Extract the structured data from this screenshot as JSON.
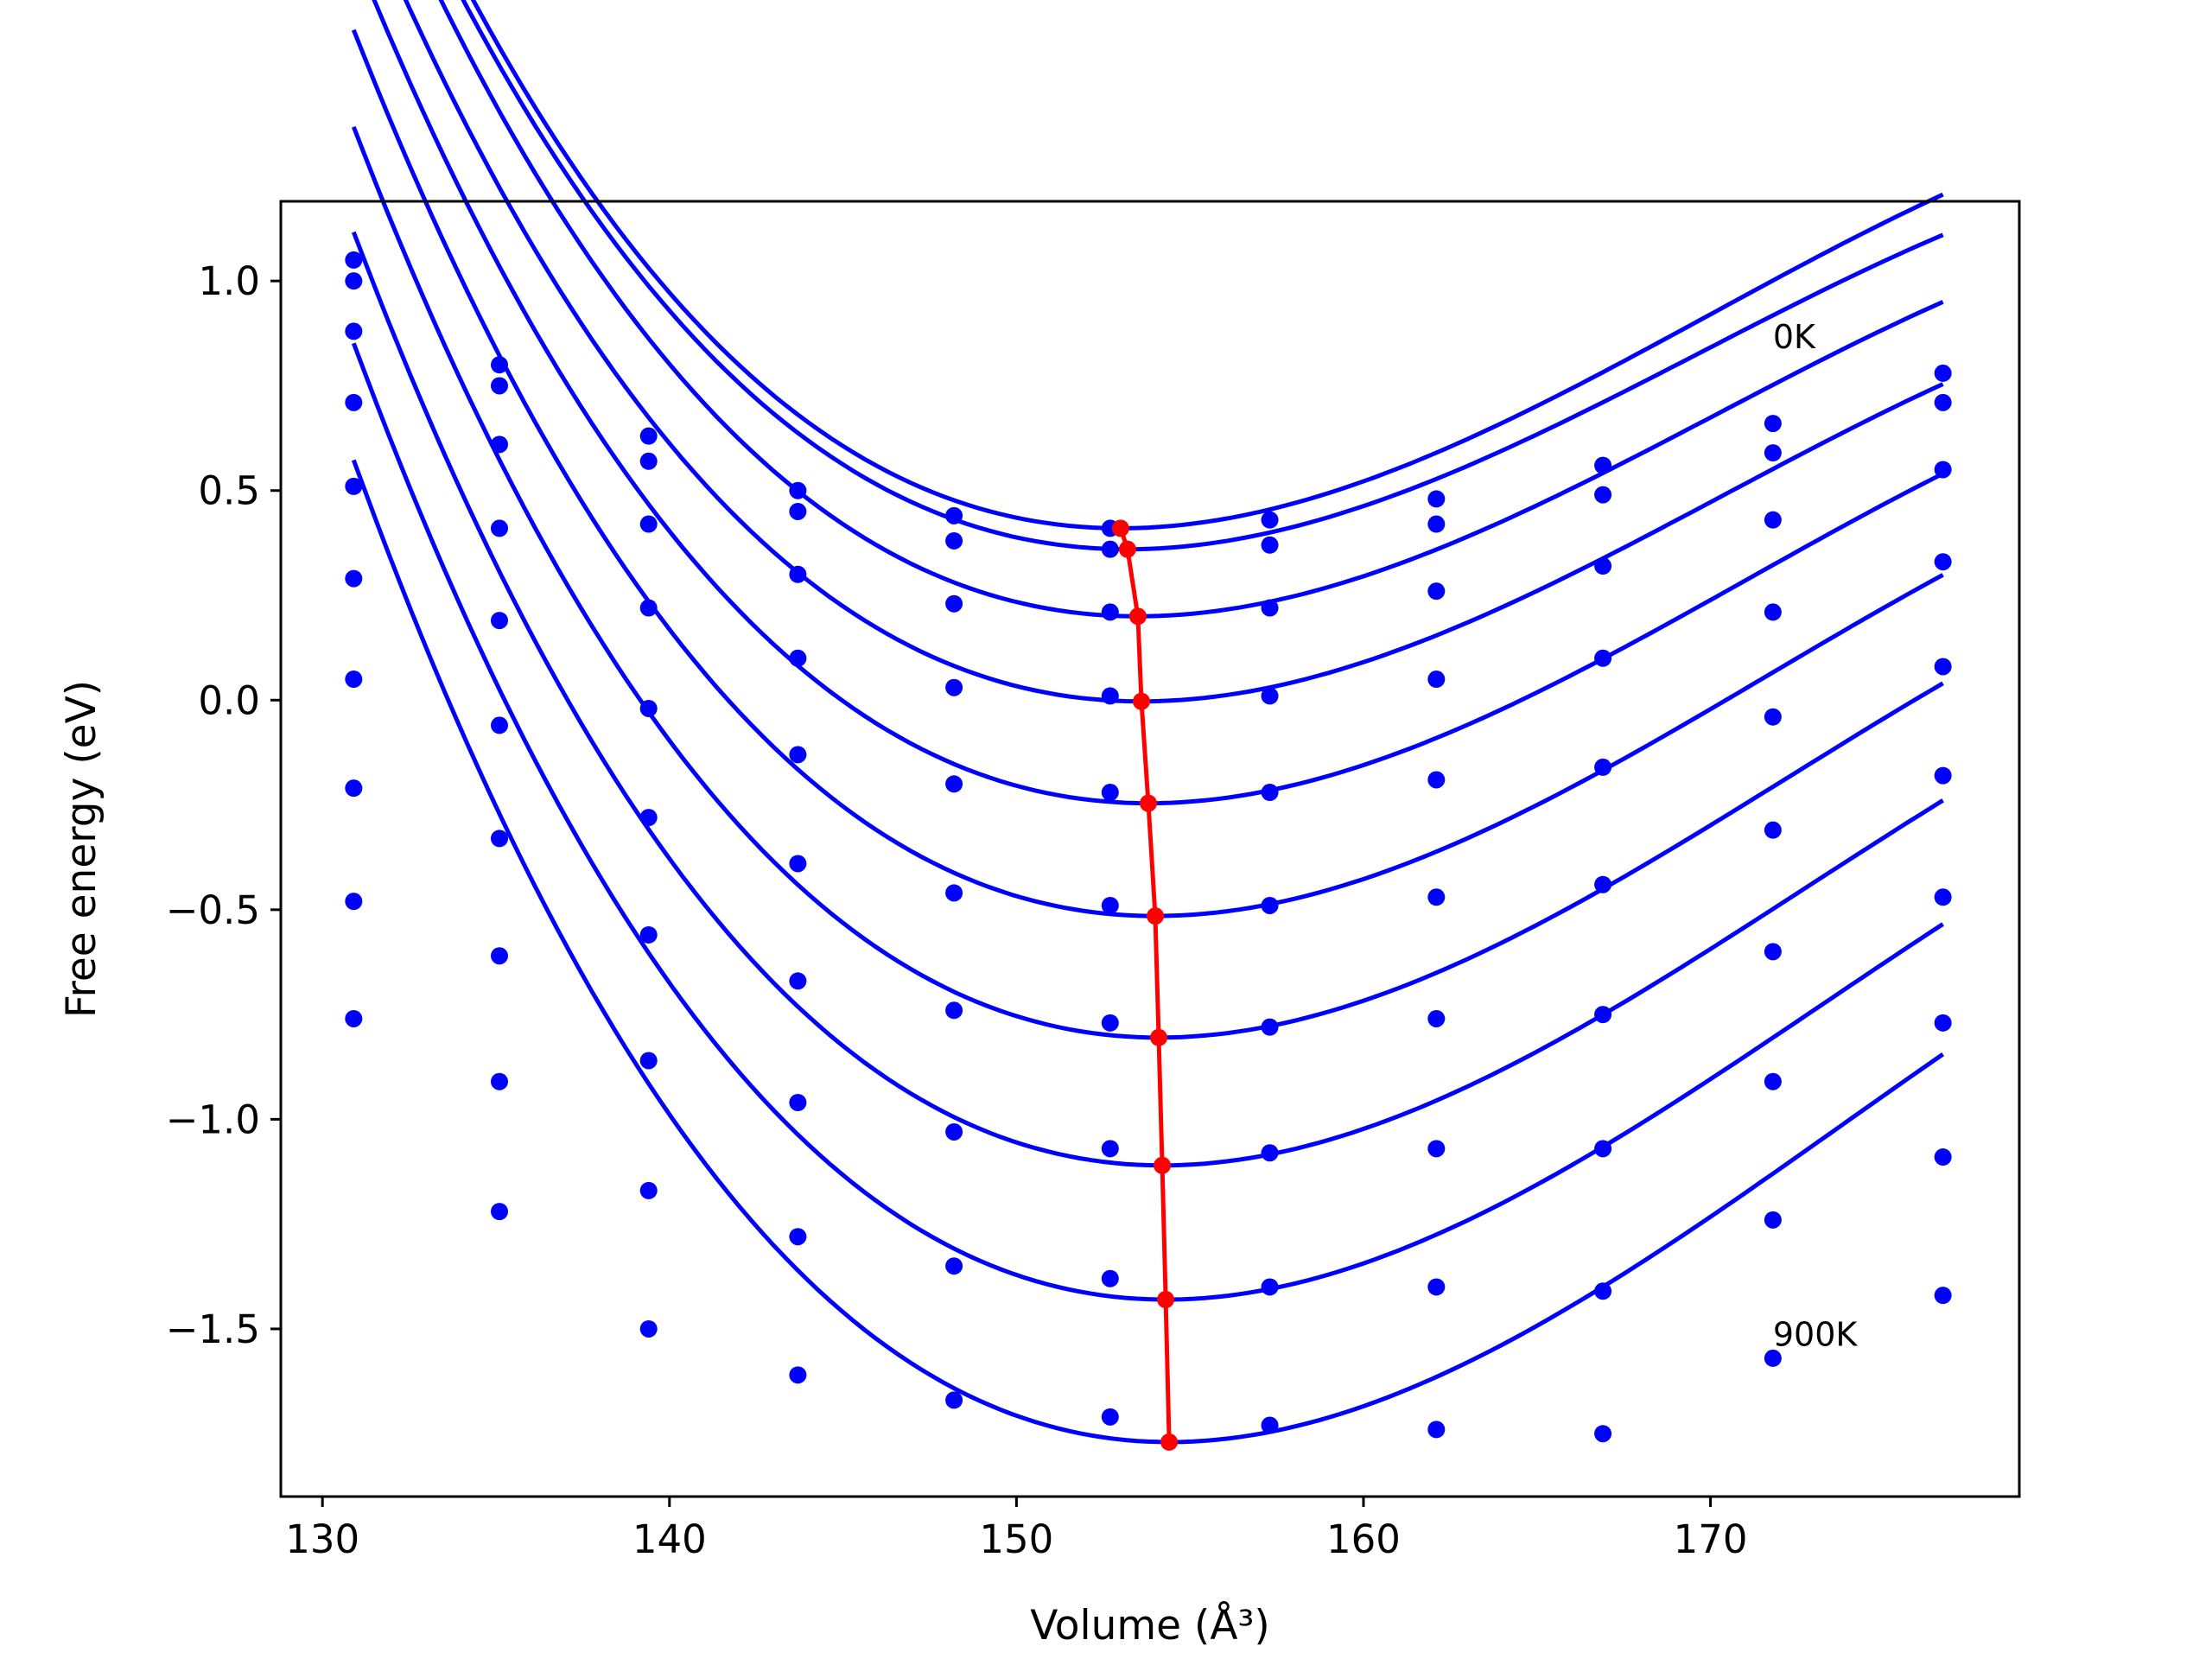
{
  "chart_data": {
    "type": "line",
    "xlabel": "Volume (Å³)",
    "ylabel": "Free energy (eV)",
    "xlim": [
      128.8,
      178.9
    ],
    "ylim": [
      -1.9,
      1.19
    ],
    "xticks": [
      130,
      140,
      150,
      160,
      170
    ],
    "yticks": [
      -1.5,
      -1.0,
      -0.5,
      0.0,
      0.5,
      1.0
    ],
    "xtick_labels": [
      "130",
      "140",
      "150",
      "160",
      "170"
    ],
    "ytick_labels": [
      "−1.5",
      "−1.0",
      "−0.5",
      "0.0",
      "0.5",
      "1.0"
    ],
    "annotations": [
      {
        "text": "0K",
        "x": 171.8,
        "y": 0.84
      },
      {
        "text": "900K",
        "x": 171.8,
        "y": -1.54
      }
    ],
    "grid": false,
    "volumes": [
      130.9,
      135.1,
      139.4,
      143.7,
      148.2,
      152.7,
      157.3,
      162.1,
      166.9,
      171.8,
      176.7
    ],
    "series": [
      {
        "color": "#0000ff",
        "points": [
          1.05,
          0.8,
          0.63,
          0.5,
          0.44,
          0.41,
          0.43,
          0.48,
          0.56,
          0.66,
          0.78
        ],
        "fit_min": [
          153.0,
          0.41
        ],
        "fit_curv": 0.00265,
        "fit_skew": -5.2e-05
      },
      {
        "color": "#0000ff",
        "points": [
          1.0,
          0.75,
          0.57,
          0.45,
          0.38,
          0.36,
          0.37,
          0.42,
          0.49,
          0.59,
          0.71
        ],
        "fit_min": [
          153.2,
          0.36
        ],
        "fit_curv": 0.00258,
        "fit_skew": -5.2e-05
      },
      {
        "color": "#0000ff",
        "points": [
          0.88,
          0.61,
          0.42,
          0.3,
          0.23,
          0.21,
          0.22,
          0.26,
          0.32,
          0.43,
          0.55
        ],
        "fit_min": [
          153.5,
          0.2
        ],
        "fit_curv": 0.0026,
        "fit_skew": -5.2e-05
      },
      {
        "color": "#0000ff",
        "points": [
          0.71,
          0.41,
          0.22,
          0.1,
          0.03,
          0.01,
          0.01,
          0.05,
          0.1,
          0.21,
          0.33
        ],
        "fit_min": [
          153.6,
          -0.003
        ],
        "fit_curv": 0.00262,
        "fit_skew": -5.2e-05
      },
      {
        "color": "#0000ff",
        "points": [
          0.51,
          0.19,
          -0.02,
          -0.13,
          -0.2,
          -0.22,
          -0.22,
          -0.19,
          -0.16,
          -0.04,
          0.08
        ],
        "fit_min": [
          153.8,
          -0.246
        ],
        "fit_curv": 0.00269,
        "fit_skew": -5.2e-05
      },
      {
        "color": "#0000ff",
        "points": [
          0.29,
          -0.06,
          -0.28,
          -0.39,
          -0.46,
          -0.49,
          -0.49,
          -0.47,
          -0.44,
          -0.31,
          -0.18
        ],
        "fit_min": [
          154.0,
          -0.515
        ],
        "fit_curv": 0.00276,
        "fit_skew": -5.2e-05
      },
      {
        "color": "#0000ff",
        "points": [
          0.05,
          -0.33,
          -0.56,
          -0.67,
          -0.74,
          -0.77,
          -0.78,
          -0.76,
          -0.75,
          -0.6,
          -0.47
        ],
        "fit_min": [
          154.1,
          -0.805
        ],
        "fit_curv": 0.00283,
        "fit_skew": -5.2e-05
      },
      {
        "color": "#0000ff",
        "points": [
          -0.21,
          -0.61,
          -0.86,
          -0.96,
          -1.03,
          -1.07,
          -1.08,
          -1.07,
          -1.07,
          -0.91,
          -0.77
        ],
        "fit_min": [
          154.2,
          -1.11
        ],
        "fit_curv": 0.00289,
        "fit_skew": -5.2e-05
      },
      {
        "color": "#0000ff",
        "points": [
          -0.48,
          -0.91,
          -1.17,
          -1.28,
          -1.35,
          -1.38,
          -1.4,
          -1.4,
          -1.41,
          -1.24,
          -1.09
        ],
        "fit_min": [
          154.3,
          -1.43
        ],
        "fit_curv": 0.00295,
        "fit_skew": -5.2e-05
      },
      {
        "color": "#0000ff",
        "points": [
          -0.76,
          -1.22,
          -1.5,
          -1.61,
          -1.67,
          -1.71,
          -1.73,
          -1.74,
          -1.75,
          -1.57,
          -1.42
        ],
        "fit_min": [
          154.4,
          -1.77
        ],
        "fit_curv": 0.00302,
        "fit_skew": -5.2e-05
      }
    ],
    "minima_line": {
      "color": "#ff0000",
      "x": [
        153.0,
        153.2,
        153.5,
        153.6,
        153.8,
        154.0,
        154.1,
        154.2,
        154.3,
        154.4
      ],
      "y": [
        0.41,
        0.36,
        0.2,
        -0.003,
        -0.246,
        -0.515,
        -0.805,
        -1.11,
        -1.43,
        -1.77
      ]
    }
  }
}
